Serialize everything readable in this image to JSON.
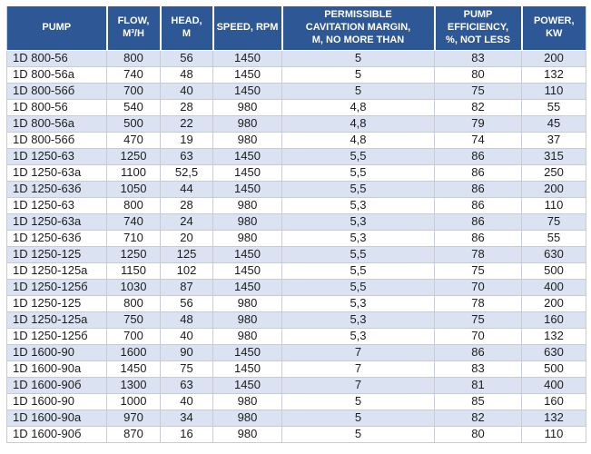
{
  "colors": {
    "header_bg": "#2E5796",
    "header_text": "#FFFFFF",
    "row_alt_bg": "#DBE3F2",
    "row_bg": "#FFFFFF",
    "grid_border": "#C6CBD6"
  },
  "table": {
    "columns": [
      {
        "label": "PUMP"
      },
      {
        "label": "FLOW,\nM³/H"
      },
      {
        "label": "HEAD,\nM"
      },
      {
        "label": "SPEED, RPM"
      },
      {
        "label": "PERMISSIBLE\nCAVITATION MARGIN,\nM, NO MORE THAN"
      },
      {
        "label": "PUMP\nEFFICIENCY,\n%, NOT LESS"
      },
      {
        "label": "POWER,\nKW"
      }
    ],
    "rows": [
      [
        "1D 800-56",
        "800",
        "56",
        "1450",
        "5",
        "83",
        "200"
      ],
      [
        "1D 800-56a",
        "740",
        "48",
        "1450",
        "5",
        "80",
        "132"
      ],
      [
        "1D 800-56б",
        "700",
        "40",
        "1450",
        "5",
        "75",
        "110"
      ],
      [
        "1D 800-56",
        "540",
        "28",
        "980",
        "4,8",
        "82",
        "55"
      ],
      [
        "1D 800-56a",
        "500",
        "22",
        "980",
        "4,8",
        "79",
        "45"
      ],
      [
        "1D 800-56б",
        "470",
        "19",
        "980",
        "4,8",
        "74",
        "37"
      ],
      [
        "1D 1250-63",
        "1250",
        "63",
        "1450",
        "5,5",
        "86",
        "315"
      ],
      [
        "1D 1250-63a",
        "1100",
        "52,5",
        "1450",
        "5,5",
        "86",
        "250"
      ],
      [
        "1D 1250-63б",
        "1050",
        "44",
        "1450",
        "5,5",
        "86",
        "200"
      ],
      [
        "1D 1250-63",
        "800",
        "28",
        "980",
        "5,3",
        "86",
        "110"
      ],
      [
        "1D 1250-63a",
        "740",
        "24",
        "980",
        "5,3",
        "86",
        "75"
      ],
      [
        "1D 1250-63б",
        "710",
        "20",
        "980",
        "5,3",
        "86",
        "55"
      ],
      [
        "1D 1250-125",
        "1250",
        "125",
        "1450",
        "5,5",
        "78",
        "630"
      ],
      [
        "1D 1250-125a",
        "1150",
        "102",
        "1450",
        "5,5",
        "75",
        "500"
      ],
      [
        "1D 1250-125б",
        "1030",
        "87",
        "1450",
        "5,5",
        "70",
        "400"
      ],
      [
        "1D 1250-125",
        "800",
        "56",
        "980",
        "5,3",
        "78",
        "200"
      ],
      [
        "1D 1250-125a",
        "750",
        "48",
        "980",
        "5,3",
        "75",
        "160"
      ],
      [
        "1D 1250-125б",
        "700",
        "40",
        "980",
        "5,3",
        "70",
        "132"
      ],
      [
        "1D 1600-90",
        "1600",
        "90",
        "1450",
        "7",
        "86",
        "630"
      ],
      [
        "1D 1600-90a",
        "1450",
        "75",
        "1450",
        "7",
        "83",
        "500"
      ],
      [
        "1D 1600-90б",
        "1300",
        "63",
        "1450",
        "7",
        "81",
        "400"
      ],
      [
        "1D 1600-90",
        "1000",
        "40",
        "980",
        "5",
        "85",
        "160"
      ],
      [
        "1D 1600-90a",
        "970",
        "34",
        "980",
        "5",
        "82",
        "132"
      ],
      [
        "1D 1600-90б",
        "870",
        "16",
        "980",
        "5",
        "80",
        "110"
      ]
    ]
  }
}
